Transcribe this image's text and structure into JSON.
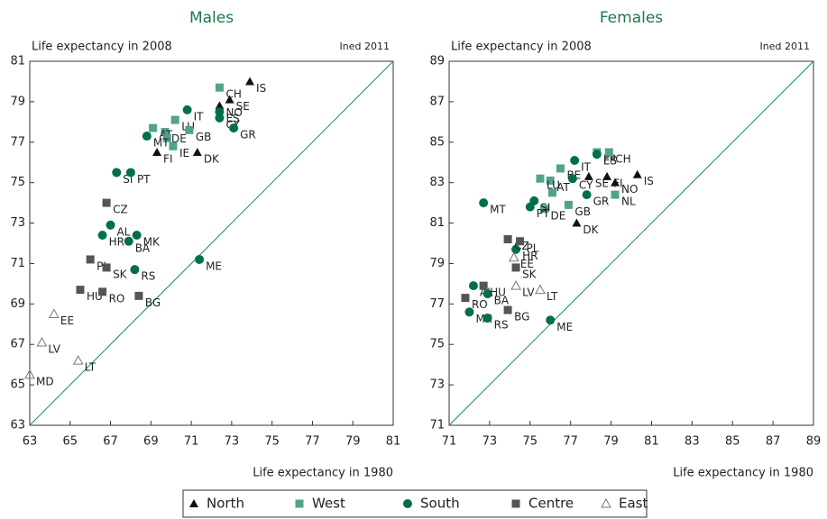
{
  "chart_data": [
    {
      "type": "scatter",
      "title": "Males",
      "ylabel": "Life expectancy in 2008",
      "xlabel": "Life expectancy in 1980",
      "note": "Ined 2011",
      "xlim": [
        63,
        81
      ],
      "ylim": [
        63,
        81
      ],
      "xticks": [
        63,
        65,
        67,
        69,
        71,
        73,
        75,
        77,
        79,
        81
      ],
      "yticks": [
        63,
        65,
        67,
        69,
        71,
        73,
        75,
        77,
        79,
        81
      ],
      "diagonal": true,
      "series": [
        {
          "name": "North",
          "color": "#111111",
          "marker": "triangle",
          "labels": [
            "IS",
            "SE",
            "NO",
            "FI",
            "DK"
          ],
          "x": [
            73.9,
            72.9,
            72.4,
            69.3,
            71.3
          ],
          "values": [
            80.0,
            79.1,
            78.8,
            76.5,
            76.5
          ]
        },
        {
          "name": "West",
          "color": "#4fa38f",
          "marker": "square",
          "labels": [
            "CH",
            "LU",
            "DE",
            "AT",
            "IE",
            "GB",
            null
          ],
          "x": [
            72.4,
            70.2,
            69.7,
            69.1,
            70.1,
            70.9,
            69.8
          ],
          "values": [
            79.7,
            78.1,
            77.5,
            77.7,
            76.8,
            77.6,
            77.2
          ]
        },
        {
          "name": "South",
          "color": "#00704a",
          "marker": "circle",
          "labels": [
            "IT",
            "ES",
            "CY",
            "GR",
            "MT",
            "SI",
            "PT",
            "AL",
            "MK",
            "HR",
            "BA",
            "RS",
            "ME"
          ],
          "x": [
            70.8,
            72.4,
            72.4,
            73.1,
            68.8,
            67.3,
            68.0,
            67.0,
            68.3,
            66.6,
            67.9,
            68.2,
            71.4
          ],
          "values": [
            78.6,
            78.5,
            78.2,
            77.7,
            77.3,
            75.5,
            75.5,
            72.9,
            72.4,
            72.4,
            72.1,
            70.7,
            71.2
          ]
        },
        {
          "name": "Centre",
          "color": "#555555",
          "marker": "square",
          "labels": [
            "CZ",
            "PL",
            "SK",
            "HU",
            "RO",
            "BG"
          ],
          "x": [
            66.8,
            66.0,
            66.8,
            65.5,
            66.6,
            68.4
          ],
          "values": [
            74.0,
            71.2,
            70.8,
            69.7,
            69.6,
            69.4
          ]
        },
        {
          "name": "East",
          "color": "#777777",
          "marker": "triangle-open",
          "labels": [
            "EE",
            "LV",
            "LT",
            "MD"
          ],
          "x": [
            64.2,
            63.6,
            65.4,
            63.0
          ],
          "values": [
            68.5,
            67.1,
            66.2,
            65.5
          ]
        }
      ]
    },
    {
      "type": "scatter",
      "title": "Females",
      "ylabel": "Life expectancy in 2008",
      "xlabel": "Life expectancy in 1980",
      "note": "Ined 2011",
      "xlim": [
        71,
        89
      ],
      "ylim": [
        71,
        89
      ],
      "xticks": [
        71,
        73,
        75,
        77,
        79,
        81,
        83,
        85,
        87,
        89
      ],
      "yticks": [
        71,
        73,
        75,
        77,
        79,
        81,
        83,
        85,
        87,
        89
      ],
      "diagonal": true,
      "series": [
        {
          "name": "North",
          "color": "#111111",
          "marker": "triangle",
          "labels": [
            "SE",
            "FI",
            "NO",
            "IS",
            "DK"
          ],
          "x": [
            77.9,
            78.8,
            79.2,
            80.3,
            77.3
          ],
          "values": [
            83.3,
            83.3,
            83.0,
            83.4,
            81.0
          ]
        },
        {
          "name": "West",
          "color": "#4fa38f",
          "marker": "square",
          "labels": [
            "FR",
            "CH",
            "BE",
            "AT",
            "LU",
            null,
            "DE",
            "GB",
            "NL"
          ],
          "x": [
            78.3,
            78.9,
            76.5,
            76.0,
            75.5,
            76.1,
            75.7,
            76.9,
            79.2
          ],
          "values": [
            84.5,
            84.5,
            83.7,
            83.1,
            83.2,
            82.5,
            81.7,
            81.9,
            82.4
          ]
        },
        {
          "name": "South",
          "color": "#00704a",
          "marker": "circle",
          "labels": [
            "IT",
            "ES",
            "GR",
            "CY",
            "MT",
            "SI",
            "PT",
            "HR",
            "AL",
            "BA",
            "MK",
            "RS",
            "ME"
          ],
          "x": [
            77.2,
            78.3,
            77.8,
            77.1,
            72.7,
            75.2,
            75.0,
            74.3,
            72.2,
            72.9,
            72.0,
            72.9,
            76.0
          ],
          "values": [
            84.1,
            84.4,
            82.4,
            83.2,
            82.0,
            82.1,
            81.8,
            79.7,
            77.9,
            77.5,
            76.6,
            76.3,
            76.2
          ]
        },
        {
          "name": "Centre",
          "color": "#555555",
          "marker": "square",
          "labels": [
            "CZ",
            "PL",
            "SK",
            "HU",
            "RO",
            "BG"
          ],
          "x": [
            73.9,
            74.5,
            74.3,
            72.7,
            71.8,
            73.9
          ],
          "values": [
            80.2,
            80.1,
            78.8,
            77.9,
            77.3,
            76.7
          ]
        },
        {
          "name": "East",
          "color": "#777777",
          "marker": "triangle-open",
          "labels": [
            "EE",
            "LV",
            "LT"
          ],
          "x": [
            74.2,
            74.3,
            75.5
          ],
          "values": [
            79.3,
            77.9,
            77.7
          ]
        }
      ]
    }
  ]
}
